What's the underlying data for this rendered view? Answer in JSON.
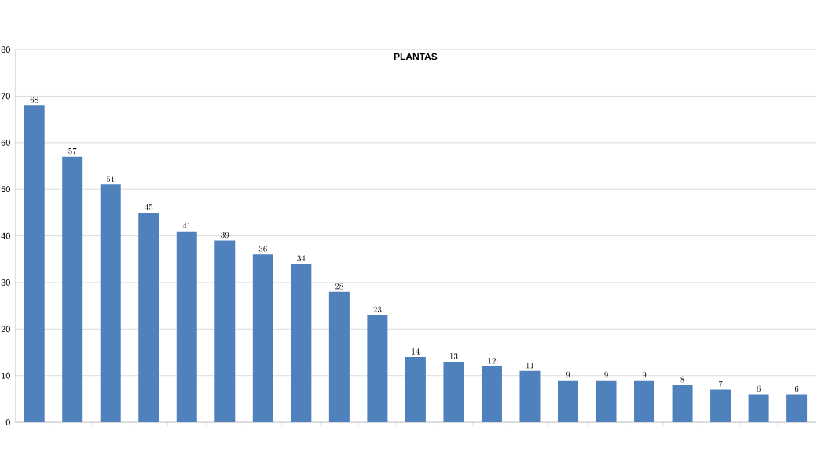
{
  "chart_data": {
    "type": "bar",
    "title": "PLANTAS",
    "categories": [
      null,
      null,
      null,
      null,
      null,
      null,
      null,
      null,
      null,
      null,
      null,
      null,
      null,
      null,
      null,
      null,
      null,
      null,
      null,
      null,
      null
    ],
    "values": [
      68,
      57,
      51,
      45,
      41,
      39,
      36,
      34,
      28,
      23,
      14,
      13,
      12,
      11,
      9,
      9,
      9,
      8,
      7,
      6,
      6
    ],
    "color": "#4f81bd",
    "ylim": [
      0,
      80
    ],
    "yticks": [
      0,
      10,
      20,
      30,
      40,
      50,
      60,
      70,
      80
    ],
    "grid": "y",
    "data_labels": true
  }
}
